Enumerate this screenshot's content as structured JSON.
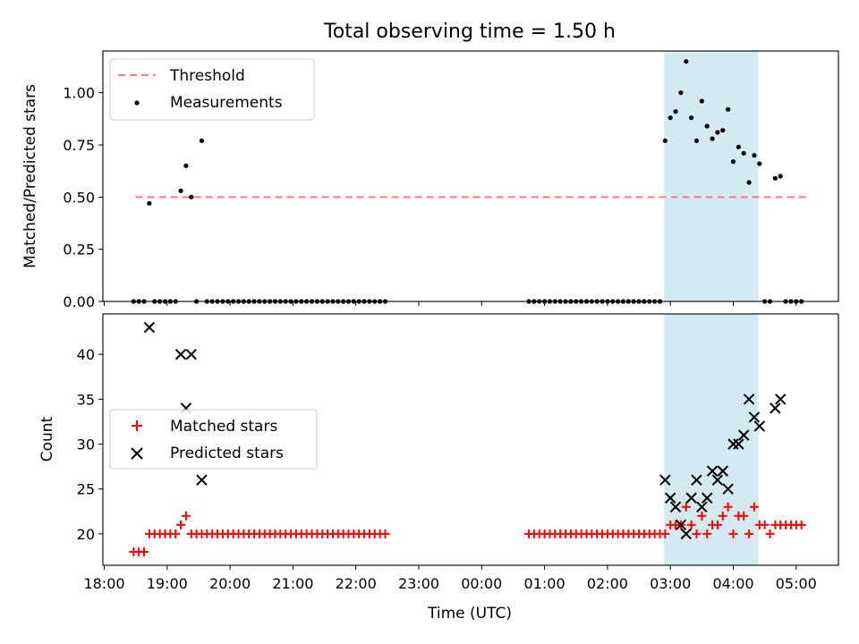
{
  "figure": {
    "title": "Total observing time = 1.50 h"
  },
  "chart_data": [
    {
      "type": "scatter",
      "panel": "top",
      "ylabel": "Matched/Predicted stars",
      "ylim": [
        0,
        1.2
      ],
      "yticks": [
        0.0,
        0.25,
        0.5,
        0.75,
        1.0
      ],
      "ytick_labels": [
        "0.00",
        "0.25",
        "0.50",
        "0.75",
        "1.00"
      ],
      "grid": false,
      "legend_position": "upper left",
      "shaded_interval": [
        "02:54",
        "04:24"
      ],
      "shade_color": "#d3eaf0",
      "threshold": {
        "name": "Threshold",
        "value": 0.5,
        "x_start": "18:30",
        "x_end": "05:10",
        "color": "#f08080"
      },
      "series": [
        {
          "name": "Measurements",
          "color": "#000000",
          "x": [
            "18:28",
            "18:33",
            "18:38",
            "18:43",
            "18:48",
            "18:53",
            "18:58",
            "19:03",
            "19:08",
            "19:13",
            "19:18",
            "19:23",
            "19:28",
            "19:33",
            "19:38",
            "19:43",
            "19:48",
            "19:53",
            "19:58",
            "20:03",
            "20:08",
            "20:13",
            "20:18",
            "20:23",
            "20:28",
            "20:33",
            "20:38",
            "20:43",
            "20:48",
            "20:53",
            "20:58",
            "21:03",
            "21:08",
            "21:13",
            "21:18",
            "21:23",
            "21:28",
            "21:33",
            "21:38",
            "21:43",
            "21:48",
            "21:53",
            "21:58",
            "22:03",
            "22:08",
            "22:13",
            "22:18",
            "22:23",
            "22:28",
            "00:45",
            "00:50",
            "00:55",
            "01:00",
            "01:05",
            "01:10",
            "01:15",
            "01:20",
            "01:25",
            "01:30",
            "01:35",
            "01:40",
            "01:45",
            "01:50",
            "01:55",
            "02:00",
            "02:05",
            "02:10",
            "02:15",
            "02:20",
            "02:25",
            "02:30",
            "02:35",
            "02:40",
            "02:45",
            "02:50",
            "02:55",
            "03:00",
            "03:05",
            "03:10",
            "03:15",
            "03:20",
            "03:25",
            "03:30",
            "03:35",
            "03:40",
            "03:45",
            "03:50",
            "03:55",
            "04:00",
            "04:05",
            "04:10",
            "04:15",
            "04:20",
            "04:25",
            "04:30",
            "04:35",
            "04:40",
            "04:45",
            "04:50",
            "04:55",
            "05:00",
            "05:05"
          ],
          "y": [
            0,
            0,
            0,
            0.47,
            0,
            0,
            0,
            0,
            0,
            0.53,
            0.65,
            0.5,
            0,
            0.77,
            0,
            0,
            0,
            0,
            0,
            0,
            0,
            0,
            0,
            0,
            0,
            0,
            0,
            0,
            0,
            0,
            0,
            0,
            0,
            0,
            0,
            0,
            0,
            0,
            0,
            0,
            0,
            0,
            0,
            0,
            0,
            0,
            0,
            0,
            0,
            0,
            0,
            0,
            0,
            0,
            0,
            0,
            0,
            0,
            0,
            0,
            0,
            0,
            0,
            0,
            0,
            0,
            0,
            0,
            0,
            0,
            0,
            0,
            0,
            0,
            0,
            0.77,
            0.88,
            0.91,
            1.0,
            1.15,
            0.88,
            0.77,
            0.96,
            0.84,
            0.78,
            0.81,
            0.82,
            0.92,
            0.67,
            0.74,
            0.71,
            0.57,
            0.7,
            0.66,
            0,
            0,
            0.59,
            0.6,
            0,
            0,
            0,
            0
          ]
        }
      ]
    },
    {
      "type": "scatter",
      "panel": "bottom",
      "xlabel": "Time (UTC)",
      "ylabel": "Count",
      "ylim": [
        16.5,
        44.5
      ],
      "yticks": [
        20,
        25,
        30,
        35,
        40
      ],
      "xticks": [
        "18:00",
        "19:00",
        "20:00",
        "21:00",
        "22:00",
        "23:00",
        "00:00",
        "01:00",
        "02:00",
        "03:00",
        "04:00",
        "05:00"
      ],
      "grid": false,
      "legend_position": "center left",
      "shaded_interval": [
        "02:54",
        "04:24"
      ],
      "series": [
        {
          "name": "Matched stars",
          "marker": "+",
          "color": "#ff0000",
          "x": [
            "18:28",
            "18:33",
            "18:38",
            "18:43",
            "18:48",
            "18:53",
            "18:58",
            "19:03",
            "19:08",
            "19:13",
            "19:18",
            "19:23",
            "19:28",
            "19:33",
            "19:38",
            "19:43",
            "19:48",
            "19:53",
            "19:58",
            "20:03",
            "20:08",
            "20:13",
            "20:18",
            "20:23",
            "20:28",
            "20:33",
            "20:38",
            "20:43",
            "20:48",
            "20:53",
            "20:58",
            "21:03",
            "21:08",
            "21:13",
            "21:18",
            "21:23",
            "21:28",
            "21:33",
            "21:38",
            "21:43",
            "21:48",
            "21:53",
            "21:58",
            "22:03",
            "22:08",
            "22:13",
            "22:18",
            "22:23",
            "22:28",
            "00:45",
            "00:50",
            "00:55",
            "01:00",
            "01:05",
            "01:10",
            "01:15",
            "01:20",
            "01:25",
            "01:30",
            "01:35",
            "01:40",
            "01:45",
            "01:50",
            "01:55",
            "02:00",
            "02:05",
            "02:10",
            "02:15",
            "02:20",
            "02:25",
            "02:30",
            "02:35",
            "02:40",
            "02:45",
            "02:50",
            "02:55",
            "03:00",
            "03:05",
            "03:10",
            "03:15",
            "03:20",
            "03:25",
            "03:30",
            "03:35",
            "03:40",
            "03:45",
            "03:50",
            "03:55",
            "04:00",
            "04:05",
            "04:10",
            "04:15",
            "04:20",
            "04:25",
            "04:30",
            "04:35",
            "04:40",
            "04:45",
            "04:50",
            "04:55",
            "05:00",
            "05:05"
          ],
          "y": [
            18,
            18,
            18,
            20,
            20,
            20,
            20,
            20,
            20,
            21,
            22,
            20,
            20,
            20,
            20,
            20,
            20,
            20,
            20,
            20,
            20,
            20,
            20,
            20,
            20,
            20,
            20,
            20,
            20,
            20,
            20,
            20,
            20,
            20,
            20,
            20,
            20,
            20,
            20,
            20,
            20,
            20,
            20,
            20,
            20,
            20,
            20,
            20,
            20,
            20,
            20,
            20,
            20,
            20,
            20,
            20,
            20,
            20,
            20,
            20,
            20,
            20,
            20,
            20,
            20,
            20,
            20,
            20,
            20,
            20,
            20,
            20,
            20,
            20,
            20,
            20,
            21,
            21,
            21,
            23,
            21,
            20,
            22,
            20,
            21,
            21,
            22,
            23,
            20,
            22,
            22,
            20,
            23,
            21,
            21,
            20,
            21,
            21,
            21,
            21,
            21,
            21
          ]
        },
        {
          "name": "Predicted stars",
          "marker": "x",
          "color": "#000000",
          "x": [
            "18:43",
            "19:13",
            "19:18",
            "19:23",
            "19:33",
            "02:55",
            "03:00",
            "03:05",
            "03:10",
            "03:15",
            "03:20",
            "03:25",
            "03:30",
            "03:35",
            "03:40",
            "03:45",
            "03:50",
            "03:55",
            "04:00",
            "04:05",
            "04:10",
            "04:15",
            "04:20",
            "04:25",
            "04:40",
            "04:45"
          ],
          "y": [
            43,
            40,
            34,
            40,
            26,
            26,
            24,
            23,
            21,
            20,
            24,
            26,
            23,
            24,
            27,
            26,
            27,
            25,
            30,
            30,
            31,
            35,
            33,
            32,
            34,
            35
          ]
        }
      ]
    }
  ]
}
